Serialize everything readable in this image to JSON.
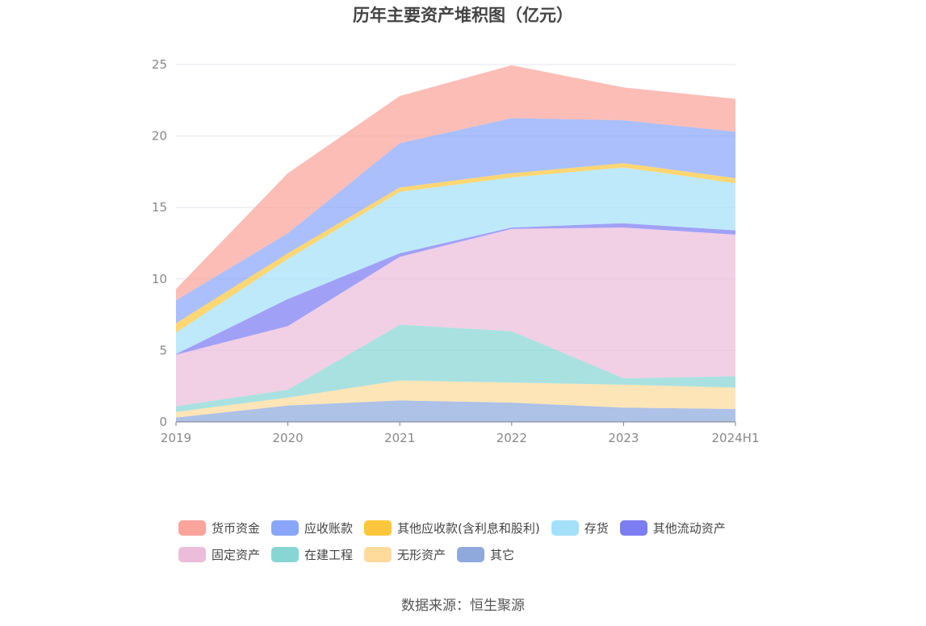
{
  "chart_data": {
    "type": "area",
    "stacked": true,
    "title": "历年主要资产堆积图（亿元）",
    "categories": [
      "2019",
      "2020",
      "2021",
      "2022",
      "2023",
      "2024H1"
    ],
    "ylim": [
      0,
      25
    ],
    "yticks": [
      0,
      5,
      10,
      15,
      20,
      25
    ],
    "grid": true,
    "legend_position": "bottom",
    "series": [
      {
        "name": "其它",
        "color": "#8fa9dc",
        "values": [
          0.3,
          1.15,
          1.5,
          1.35,
          1.0,
          0.9
        ]
      },
      {
        "name": "无形资产",
        "color": "#fedb9b",
        "values": [
          0.4,
          0.55,
          1.4,
          1.4,
          1.6,
          1.5
        ]
      },
      {
        "name": "在建工程",
        "color": "#88d6d4",
        "values": [
          0.4,
          0.55,
          3.9,
          3.6,
          0.45,
          0.8
        ]
      },
      {
        "name": "固定资产",
        "color": "#ebbddb",
        "values": [
          3.6,
          4.45,
          4.75,
          7.15,
          10.55,
          9.9
        ]
      },
      {
        "name": "其他流动资产",
        "color": "#7c7df2",
        "values": [
          0.05,
          1.9,
          0.25,
          0.1,
          0.3,
          0.3
        ]
      },
      {
        "name": "存货",
        "color": "#a5e0fa",
        "values": [
          1.5,
          2.8,
          4.3,
          3.5,
          3.9,
          3.3
        ]
      },
      {
        "name": "其他应收款(含利息和股利)",
        "color": "#fdc63c",
        "values": [
          0.65,
          0.4,
          0.3,
          0.3,
          0.3,
          0.35
        ]
      },
      {
        "name": "应收账款",
        "color": "#89a6fa",
        "values": [
          1.6,
          1.4,
          3.1,
          3.85,
          3.0,
          3.25
        ]
      },
      {
        "name": "货币资金",
        "color": "#fba49b",
        "values": [
          0.8,
          4.2,
          3.3,
          3.7,
          2.3,
          2.3
        ]
      }
    ]
  },
  "legend": {
    "row1": [
      {
        "label": "货币资金",
        "color": "#fba49b"
      },
      {
        "label": "应收账款",
        "color": "#89a6fa"
      },
      {
        "label": "其他应收款(含利息和股利)",
        "color": "#fdc63c"
      },
      {
        "label": "存货",
        "color": "#a5e0fa"
      },
      {
        "label": "其他流动资产",
        "color": "#7c7df2"
      }
    ],
    "row2": [
      {
        "label": "固定资产",
        "color": "#ebbddb"
      },
      {
        "label": "在建工程",
        "color": "#88d6d4"
      },
      {
        "label": "无形资产",
        "color": "#fedb9b"
      },
      {
        "label": "其它",
        "color": "#8fa9dc"
      }
    ]
  },
  "footer": {
    "source": "数据来源：恒生聚源"
  }
}
